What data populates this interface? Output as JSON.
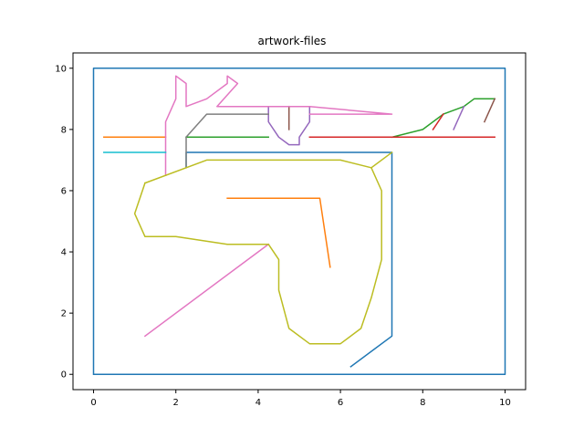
{
  "chart_data": {
    "type": "line",
    "title": "artwork-files",
    "xlabel": "",
    "ylabel": "",
    "xlim": [
      -0.5,
      10.5
    ],
    "ylim": [
      -0.5,
      10.5
    ],
    "xticks": [
      0,
      2,
      4,
      6,
      8,
      10
    ],
    "yticks": [
      0,
      2,
      4,
      6,
      8,
      10
    ],
    "grid": false,
    "legend": "none",
    "series": [
      {
        "color": "#1f77b4",
        "points": [
          [
            0,
            0
          ],
          [
            10,
            0
          ],
          [
            10,
            10
          ],
          [
            0,
            10
          ],
          [
            0,
            0
          ]
        ]
      },
      {
        "color": "#1f77b4",
        "points": [
          [
            6.25,
            0.25
          ],
          [
            7.25,
            1.25
          ],
          [
            7.25,
            7.25
          ],
          [
            2.25,
            7.25
          ],
          [
            2.25,
            6.75
          ]
        ]
      },
      {
        "color": "#ff7f0e",
        "points": [
          [
            0.25,
            7.75
          ],
          [
            1.75,
            7.75
          ]
        ]
      },
      {
        "color": "#ff7f0e",
        "points": [
          [
            3.25,
            5.75
          ],
          [
            5.5,
            5.75
          ],
          [
            5.75,
            3.5
          ]
        ]
      },
      {
        "color": "#2ca02c",
        "points": [
          [
            2.25,
            7.75
          ],
          [
            4.25,
            7.75
          ]
        ]
      },
      {
        "color": "#2ca02c",
        "points": [
          [
            7.25,
            7.75
          ],
          [
            8,
            8
          ],
          [
            8.5,
            8.5
          ],
          [
            9,
            8.75
          ],
          [
            9.25,
            9
          ],
          [
            9.75,
            9
          ]
        ]
      },
      {
        "color": "#d62728",
        "points": [
          [
            5.25,
            7.75
          ],
          [
            9.75,
            7.75
          ]
        ]
      },
      {
        "color": "#d62728",
        "points": [
          [
            8.25,
            8
          ],
          [
            8.5,
            8.5
          ]
        ]
      },
      {
        "color": "#9467bd",
        "points": [
          [
            4.25,
            8.75
          ],
          [
            4.25,
            8.25
          ],
          [
            4.5,
            7.75
          ],
          [
            4.75,
            7.5
          ],
          [
            5,
            7.5
          ],
          [
            5,
            7.75
          ],
          [
            5.25,
            8.25
          ],
          [
            5.25,
            8.75
          ]
        ]
      },
      {
        "color": "#9467bd",
        "points": [
          [
            8.75,
            8
          ],
          [
            9,
            8.75
          ]
        ]
      },
      {
        "color": "#8c564b",
        "points": [
          [
            4.75,
            8.75
          ],
          [
            4.75,
            8
          ]
        ]
      },
      {
        "color": "#8c564b",
        "points": [
          [
            9.5,
            8.25
          ],
          [
            9.75,
            9
          ]
        ]
      },
      {
        "color": "#e377c2",
        "points": [
          [
            1.75,
            6.5
          ],
          [
            1.75,
            8.25
          ],
          [
            2,
            9
          ],
          [
            2,
            9.75
          ],
          [
            2.25,
            9.5
          ],
          [
            2.25,
            8.75
          ],
          [
            2.75,
            9
          ],
          [
            3.25,
            9.5
          ],
          [
            3.25,
            9.75
          ],
          [
            3.5,
            9.5
          ],
          [
            3,
            8.75
          ],
          [
            5.25,
            8.75
          ],
          [
            7.25,
            8.5
          ],
          [
            5.25,
            8.5
          ]
        ]
      },
      {
        "color": "#e377c2",
        "points": [
          [
            1.25,
            1.25
          ],
          [
            4.25,
            4.25
          ]
        ]
      },
      {
        "color": "#7f7f7f",
        "points": [
          [
            2.25,
            6.75
          ],
          [
            2.25,
            7.75
          ],
          [
            2.75,
            8.5
          ],
          [
            4.25,
            8.5
          ]
        ]
      },
      {
        "color": "#bcbd22",
        "points": [
          [
            6.75,
            6.75
          ],
          [
            7.25,
            7.25
          ]
        ]
      },
      {
        "color": "#bcbd22",
        "points": [
          [
            1.25,
            6.25
          ],
          [
            1,
            5.25
          ],
          [
            1.25,
            4.5
          ],
          [
            2,
            4.5
          ],
          [
            3.25,
            4.25
          ],
          [
            4.25,
            4.25
          ],
          [
            4.5,
            3.75
          ],
          [
            4.5,
            2.75
          ],
          [
            4.75,
            1.5
          ],
          [
            5.25,
            1
          ],
          [
            6,
            1
          ],
          [
            6.5,
            1.5
          ],
          [
            6.75,
            2.5
          ],
          [
            7,
            3.75
          ],
          [
            7,
            6
          ],
          [
            6.75,
            6.75
          ],
          [
            6,
            7
          ],
          [
            2.75,
            7
          ],
          [
            1.25,
            6.25
          ]
        ]
      },
      {
        "color": "#17becf",
        "points": [
          [
            0.25,
            7.25
          ],
          [
            1.75,
            7.25
          ]
        ]
      }
    ]
  }
}
